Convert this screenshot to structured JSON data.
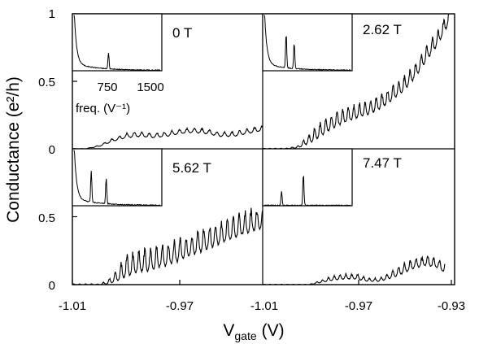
{
  "chart_data": {
    "type": "line",
    "ylabel": "Conductance (e²/h)",
    "xlabel_main": "V",
    "xlabel_sub": "gate",
    "xlabel_unit": "(V)",
    "y_ticks": [
      "0",
      "0.5",
      "1"
    ],
    "x_ticks_left": [
      "-1.01",
      "-0.97"
    ],
    "x_ticks_right": [
      "-1.01",
      "-0.97",
      "-0.93"
    ],
    "xlim": [
      -1.01,
      -0.93
    ],
    "ylim": [
      0,
      1
    ],
    "inset": {
      "tick_labels": [
        "750",
        "1500"
      ],
      "xlabel": "freq. (V⁻¹)",
      "xlim": [
        0,
        1500
      ]
    },
    "panels": [
      {
        "field": "0 T",
        "envelope": [
          [
            -1.01,
            0.0
          ],
          [
            -1.005,
            0.0
          ],
          [
            -1.0,
            0.02
          ],
          [
            -0.995,
            0.06
          ],
          [
            -0.99,
            0.09
          ],
          [
            -0.985,
            0.1
          ],
          [
            -0.98,
            0.09
          ],
          [
            -0.975,
            0.1
          ],
          [
            -0.97,
            0.12
          ],
          [
            -0.965,
            0.13
          ],
          [
            -0.96,
            0.12
          ],
          [
            -0.955,
            0.1
          ],
          [
            -0.95,
            0.1
          ],
          [
            -0.945,
            0.12
          ],
          [
            -0.94,
            0.14
          ],
          [
            -0.937,
            0.16
          ],
          [
            -0.935,
            0.2
          ],
          [
            -0.933,
            0.23
          ],
          [
            -0.931,
            0.25
          ],
          [
            -0.93,
            0.27
          ]
        ],
        "osc_amp": 0.03,
        "osc_period": 0.0028,
        "inset_peaks": [
          [
            600,
            0.28
          ]
        ],
        "inset_tail": 0.12
      },
      {
        "field": "2.62 T",
        "envelope": [
          [
            -1.01,
            0.0
          ],
          [
            -1.0,
            0.0
          ],
          [
            -0.995,
            0.01
          ],
          [
            -0.99,
            0.06
          ],
          [
            -0.985,
            0.12
          ],
          [
            -0.98,
            0.18
          ],
          [
            -0.975,
            0.22
          ],
          [
            -0.97,
            0.25
          ],
          [
            -0.965,
            0.28
          ],
          [
            -0.96,
            0.32
          ],
          [
            -0.955,
            0.38
          ],
          [
            -0.95,
            0.45
          ],
          [
            -0.945,
            0.55
          ],
          [
            -0.94,
            0.68
          ],
          [
            -0.935,
            0.8
          ],
          [
            -0.932,
            0.9
          ],
          [
            -0.93,
            0.97
          ]
        ],
        "osc_amp": 0.09,
        "osc_period": 0.0024,
        "inset_peaks": [
          [
            380,
            0.6
          ],
          [
            520,
            0.45
          ]
        ],
        "inset_tail": 0.12
      },
      {
        "field": "5.62 T",
        "envelope": [
          [
            -1.01,
            0.0
          ],
          [
            -1.0,
            0.0
          ],
          [
            -0.997,
            0.01
          ],
          [
            -0.993,
            0.05
          ],
          [
            -0.99,
            0.1
          ],
          [
            -0.985,
            0.13
          ],
          [
            -0.98,
            0.15
          ],
          [
            -0.975,
            0.18
          ],
          [
            -0.97,
            0.22
          ],
          [
            -0.965,
            0.26
          ],
          [
            -0.96,
            0.3
          ],
          [
            -0.955,
            0.34
          ],
          [
            -0.95,
            0.38
          ],
          [
            -0.945,
            0.42
          ],
          [
            -0.94,
            0.45
          ],
          [
            -0.935,
            0.5
          ],
          [
            -0.93,
            0.53
          ]
        ],
        "osc_amp": 0.14,
        "osc_period": 0.0022,
        "inset_peaks": [
          [
            300,
            0.55
          ],
          [
            560,
            0.45
          ]
        ],
        "inset_tail": 0.12
      },
      {
        "field": "7.47 T",
        "envelope": [
          [
            -1.01,
            0.0
          ],
          [
            -1.0,
            0.0
          ],
          [
            -0.99,
            0.0
          ],
          [
            -0.985,
            0.02
          ],
          [
            -0.98,
            0.04
          ],
          [
            -0.975,
            0.05
          ],
          [
            -0.97,
            0.05
          ],
          [
            -0.965,
            0.03
          ],
          [
            -0.96,
            0.03
          ],
          [
            -0.955,
            0.06
          ],
          [
            -0.95,
            0.1
          ],
          [
            -0.945,
            0.14
          ],
          [
            -0.94,
            0.16
          ],
          [
            -0.935,
            0.14
          ],
          [
            -0.932,
            0.1
          ]
        ],
        "osc_amp": 0.06,
        "osc_period": 0.0025,
        "inset_peaks": [
          [
            300,
            0.25
          ],
          [
            680,
            0.55
          ]
        ],
        "inset_tail": 0.0
      }
    ]
  }
}
